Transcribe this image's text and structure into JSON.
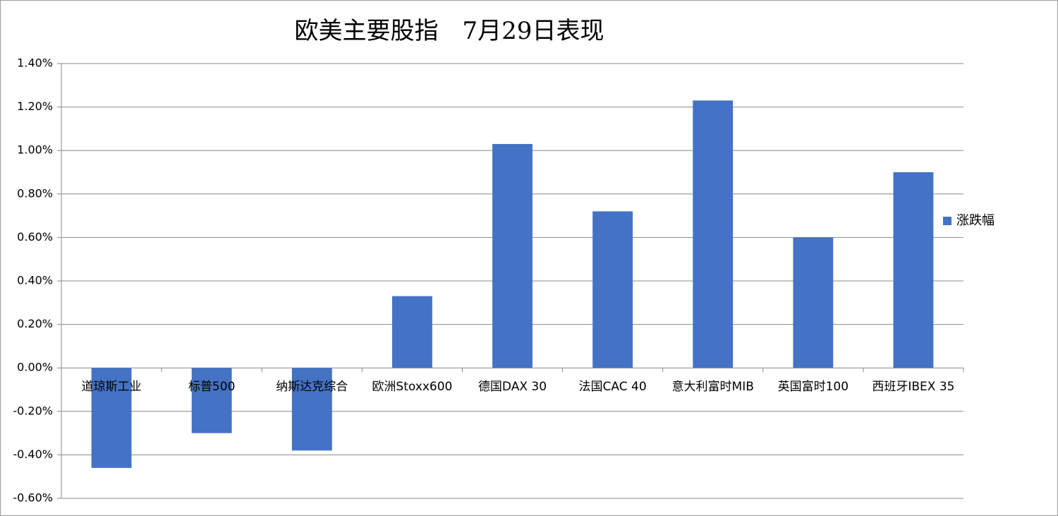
{
  "chart_data": {
    "type": "bar",
    "title": "欧美主要股指　7月29日表现",
    "categories": [
      "道琼斯工业",
      "标普500",
      "纳斯达克综合",
      "欧洲Stoxx600",
      "德国DAX 30",
      "法国CAC 40",
      "意大利富时MIB",
      "英国富时100",
      "西班牙IBEX 35"
    ],
    "series": [
      {
        "name": "涨跌幅",
        "color": "#4472c4",
        "values": [
          -0.46,
          -0.3,
          -0.38,
          0.33,
          1.03,
          0.72,
          1.23,
          0.6,
          0.9
        ]
      }
    ],
    "ylim": [
      -0.6,
      1.4
    ],
    "yticks": [
      {
        "value": -0.6,
        "label": "-0.60%"
      },
      {
        "value": -0.4,
        "label": "-0.40%"
      },
      {
        "value": -0.2,
        "label": "-0.20%"
      },
      {
        "value": 0,
        "label": "0.00%"
      },
      {
        "value": 0.2,
        "label": "0.20%"
      },
      {
        "value": 0.4,
        "label": "0.40%"
      },
      {
        "value": 0.6,
        "label": "0.60%"
      },
      {
        "value": 0.8,
        "label": "0.80%"
      },
      {
        "value": 1.0,
        "label": "1.00%"
      },
      {
        "value": 1.2,
        "label": "1.20%"
      },
      {
        "value": 1.4,
        "label": "1.40%"
      }
    ],
    "grid": true,
    "legend": "right"
  }
}
